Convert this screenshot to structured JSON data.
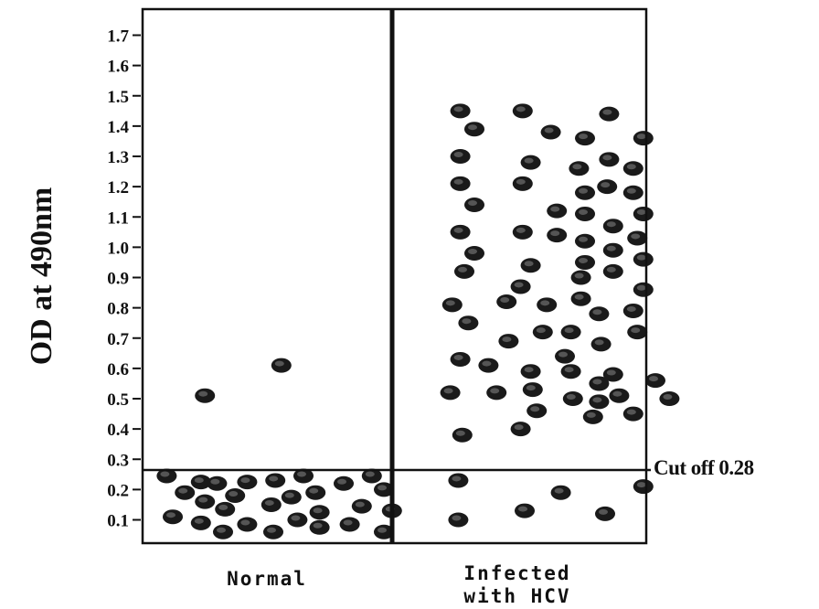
{
  "chart_data": {
    "type": "scatter",
    "ylabel": "OD at 490nm",
    "ylim": [
      0.05,
      1.75
    ],
    "yticks": [
      "0.1",
      "0.2",
      "0.3",
      "0.4",
      "0.5",
      "0.6",
      "0.7",
      "0.8",
      "0.9",
      "1.0",
      "1.1",
      "1.2",
      "1.3",
      "1.4",
      "1.5",
      "1.6",
      "1.7"
    ],
    "cutoff": {
      "value": 0.28,
      "label": "Cut off 0.28"
    },
    "groups": [
      {
        "label_lines": [
          "Normal"
        ],
        "points": [
          {
            "x": 0.12,
            "y": 0.245
          },
          {
            "x": 0.29,
            "y": 0.225
          },
          {
            "x": 0.37,
            "y": 0.22
          },
          {
            "x": 0.52,
            "y": 0.225
          },
          {
            "x": 0.66,
            "y": 0.23
          },
          {
            "x": 0.8,
            "y": 0.245
          },
          {
            "x": 1.0,
            "y": 0.22
          },
          {
            "x": 1.14,
            "y": 0.245
          },
          {
            "x": 0.21,
            "y": 0.19
          },
          {
            "x": 0.46,
            "y": 0.18
          },
          {
            "x": 0.86,
            "y": 0.19
          },
          {
            "x": 0.74,
            "y": 0.175
          },
          {
            "x": 0.31,
            "y": 0.16
          },
          {
            "x": 0.41,
            "y": 0.135
          },
          {
            "x": 0.64,
            "y": 0.15
          },
          {
            "x": 0.88,
            "y": 0.125
          },
          {
            "x": 1.09,
            "y": 0.145
          },
          {
            "x": 1.2,
            "y": 0.2
          },
          {
            "x": 1.24,
            "y": 0.13
          },
          {
            "x": 0.15,
            "y": 0.11
          },
          {
            "x": 0.29,
            "y": 0.09
          },
          {
            "x": 0.4,
            "y": 0.06
          },
          {
            "x": 0.52,
            "y": 0.085
          },
          {
            "x": 0.65,
            "y": 0.06
          },
          {
            "x": 0.77,
            "y": 0.1
          },
          {
            "x": 0.88,
            "y": 0.075
          },
          {
            "x": 1.03,
            "y": 0.085
          },
          {
            "x": 1.2,
            "y": 0.06
          },
          {
            "x": 0.31,
            "y": 0.51
          },
          {
            "x": 0.69,
            "y": 0.61
          }
        ]
      },
      {
        "label_lines": [
          "Infected",
          "with HCV"
        ],
        "points": [
          {
            "x": 1.58,
            "y": 1.45
          },
          {
            "x": 1.89,
            "y": 1.45
          },
          {
            "x": 2.32,
            "y": 1.44
          },
          {
            "x": 1.65,
            "y": 1.39
          },
          {
            "x": 2.03,
            "y": 1.38
          },
          {
            "x": 2.2,
            "y": 1.36
          },
          {
            "x": 2.49,
            "y": 1.36
          },
          {
            "x": 1.58,
            "y": 1.3
          },
          {
            "x": 1.93,
            "y": 1.28
          },
          {
            "x": 2.17,
            "y": 1.26
          },
          {
            "x": 2.32,
            "y": 1.29
          },
          {
            "x": 2.44,
            "y": 1.26
          },
          {
            "x": 1.58,
            "y": 1.21
          },
          {
            "x": 1.89,
            "y": 1.21
          },
          {
            "x": 2.2,
            "y": 1.18
          },
          {
            "x": 2.31,
            "y": 1.2
          },
          {
            "x": 2.44,
            "y": 1.18
          },
          {
            "x": 1.65,
            "y": 1.14
          },
          {
            "x": 2.06,
            "y": 1.12
          },
          {
            "x": 2.2,
            "y": 1.11
          },
          {
            "x": 2.49,
            "y": 1.11
          },
          {
            "x": 1.58,
            "y": 1.05
          },
          {
            "x": 1.89,
            "y": 1.05
          },
          {
            "x": 2.06,
            "y": 1.04
          },
          {
            "x": 2.2,
            "y": 1.02
          },
          {
            "x": 2.34,
            "y": 1.07
          },
          {
            "x": 2.46,
            "y": 1.03
          },
          {
            "x": 1.65,
            "y": 0.98
          },
          {
            "x": 1.93,
            "y": 0.94
          },
          {
            "x": 2.2,
            "y": 0.95
          },
          {
            "x": 2.34,
            "y": 0.99
          },
          {
            "x": 2.49,
            "y": 0.96
          },
          {
            "x": 1.6,
            "y": 0.92
          },
          {
            "x": 1.88,
            "y": 0.87
          },
          {
            "x": 2.18,
            "y": 0.9
          },
          {
            "x": 2.34,
            "y": 0.92
          },
          {
            "x": 1.54,
            "y": 0.81
          },
          {
            "x": 1.81,
            "y": 0.82
          },
          {
            "x": 2.01,
            "y": 0.81
          },
          {
            "x": 2.18,
            "y": 0.83
          },
          {
            "x": 2.27,
            "y": 0.78
          },
          {
            "x": 2.49,
            "y": 0.86
          },
          {
            "x": 2.44,
            "y": 0.79
          },
          {
            "x": 1.62,
            "y": 0.75
          },
          {
            "x": 1.99,
            "y": 0.72
          },
          {
            "x": 2.13,
            "y": 0.72
          },
          {
            "x": 2.46,
            "y": 0.72
          },
          {
            "x": 1.82,
            "y": 0.69
          },
          {
            "x": 2.28,
            "y": 0.68
          },
          {
            "x": 1.58,
            "y": 0.63
          },
          {
            "x": 2.1,
            "y": 0.64
          },
          {
            "x": 1.72,
            "y": 0.61
          },
          {
            "x": 1.93,
            "y": 0.59
          },
          {
            "x": 2.13,
            "y": 0.59
          },
          {
            "x": 2.34,
            "y": 0.58
          },
          {
            "x": 2.27,
            "y": 0.55
          },
          {
            "x": 2.55,
            "y": 0.56
          },
          {
            "x": 1.53,
            "y": 0.52
          },
          {
            "x": 1.76,
            "y": 0.52
          },
          {
            "x": 1.94,
            "y": 0.53
          },
          {
            "x": 2.14,
            "y": 0.5
          },
          {
            "x": 2.27,
            "y": 0.49
          },
          {
            "x": 2.37,
            "y": 0.51
          },
          {
            "x": 2.62,
            "y": 0.5
          },
          {
            "x": 1.96,
            "y": 0.46
          },
          {
            "x": 2.24,
            "y": 0.44
          },
          {
            "x": 2.44,
            "y": 0.45
          },
          {
            "x": 1.88,
            "y": 0.4
          },
          {
            "x": 1.59,
            "y": 0.38
          },
          {
            "x": 1.57,
            "y": 0.23
          },
          {
            "x": 2.49,
            "y": 0.21
          },
          {
            "x": 2.08,
            "y": 0.19
          },
          {
            "x": 1.57,
            "y": 0.1
          },
          {
            "x": 1.9,
            "y": 0.13
          },
          {
            "x": 2.3,
            "y": 0.12
          }
        ]
      }
    ]
  }
}
